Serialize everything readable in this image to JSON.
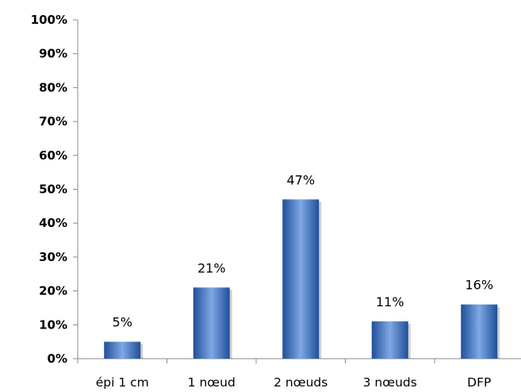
{
  "chart_data": {
    "type": "bar",
    "categories": [
      "épi 1 cm",
      "1 nœud",
      "2 nœuds",
      "3 nœuds",
      "DFP"
    ],
    "values": [
      5,
      21,
      47,
      11,
      16
    ],
    "data_labels": [
      "5%",
      "21%",
      "47%",
      "11%",
      "16%"
    ],
    "value_unit": "%",
    "ylim": [
      0,
      100
    ],
    "y_ticks": [
      "0%",
      "10%",
      "20%",
      "30%",
      "40%",
      "50%",
      "60%",
      "70%",
      "80%",
      "90%",
      "100%"
    ],
    "title": "",
    "xlabel": "",
    "ylabel": "",
    "grid": false,
    "legend": "none",
    "colors": {
      "bar_light": "#7fa8e4",
      "bar_mid": "#3e72c2",
      "bar_dark": "#1f4f9a",
      "axis": "#888888"
    }
  }
}
